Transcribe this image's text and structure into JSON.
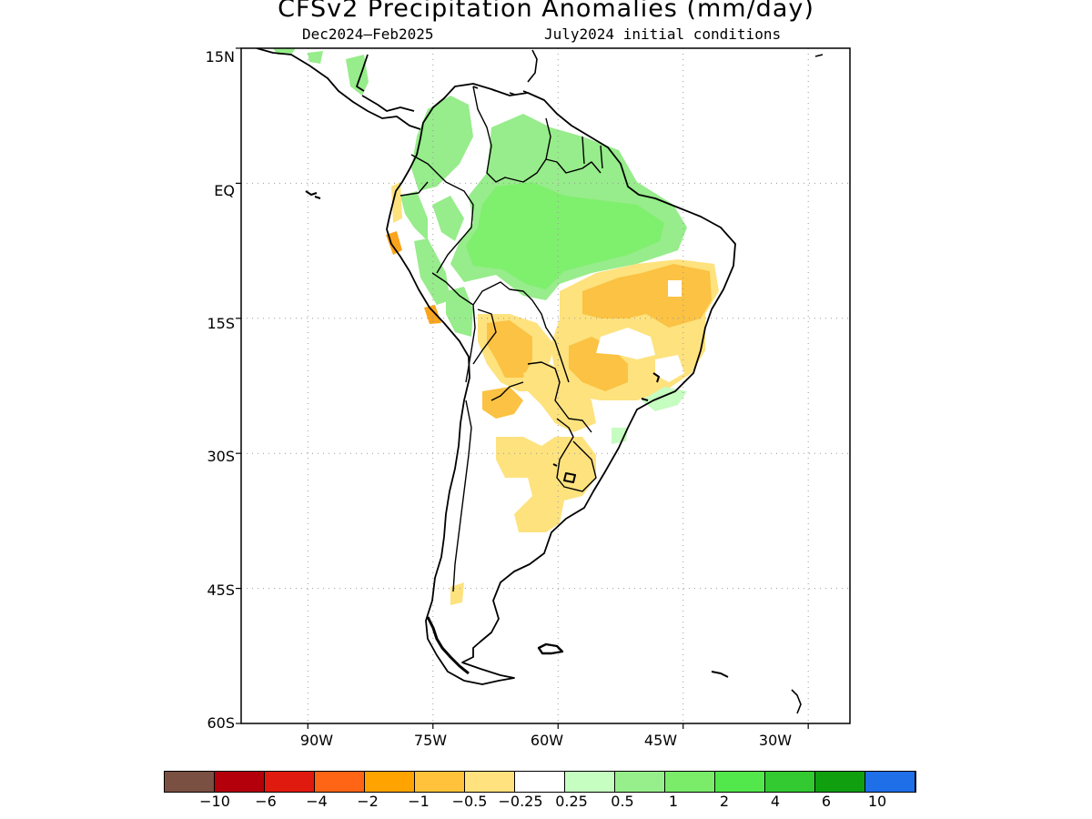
{
  "title": "CFSv2 Precipitation Anomalies (mm/day)",
  "subtitle_left": "Dec2024—Feb2025",
  "subtitle_right": "July2024 initial conditions",
  "map": {
    "lat_range": [
      -60,
      15
    ],
    "lon_range": [
      -98,
      -25
    ],
    "lat_ticks": [
      {
        "value": 15,
        "label": "15N"
      },
      {
        "value": 0,
        "label": "EQ"
      },
      {
        "value": -15,
        "label": "15S"
      },
      {
        "value": -30,
        "label": "30S"
      },
      {
        "value": -45,
        "label": "45S"
      },
      {
        "value": -60,
        "label": "60S"
      }
    ],
    "lon_ticks": [
      {
        "value": -90,
        "label": "90W"
      },
      {
        "value": -75,
        "label": "75W"
      },
      {
        "value": -60,
        "label": "60W"
      },
      {
        "value": -45,
        "label": "45W"
      },
      {
        "value": -30,
        "label": "30W"
      }
    ],
    "gridlines": "dotted",
    "anomaly_regions": [
      {
        "region": "Amazon basin",
        "category": "1 to 2",
        "color": "#7fef6e"
      },
      {
        "region": "Northwestern South America / Colombia",
        "category": "0.5 to 1",
        "color": "#97ec8b"
      },
      {
        "region": "Eastern Brazil (Bahia, Minas Gerais)",
        "category": "-1 to -0.5",
        "color": "#fbc243"
      },
      {
        "region": "Central Brazil / southern Brazil / Paraguay / Bolivia",
        "category": "-0.5 to -0.25",
        "color": "#fde27e"
      },
      {
        "region": "Northern Argentina / Uruguay",
        "category": "-0.5 to -0.25",
        "color": "#fde27e"
      },
      {
        "region": "Coastal Peru",
        "category": "-2 to -1",
        "color": "#f9a41c"
      }
    ]
  },
  "colorbar": {
    "colors": [
      "#7a5043",
      "#b4000a",
      "#e01a0e",
      "#ff6514",
      "#ffa300",
      "#ffc23a",
      "#ffe27e",
      "#ffffff",
      "#c6fdc1",
      "#97ef8b",
      "#7aec6a",
      "#52e84b",
      "#33c931",
      "#0f9f0f",
      "#1f6fe8"
    ],
    "labels": [
      "−10",
      "−6",
      "−4",
      "−2",
      "−1",
      "−0.5",
      "−0.25",
      "0.25",
      "0.5",
      "1",
      "2",
      "4",
      "6",
      "10"
    ]
  }
}
